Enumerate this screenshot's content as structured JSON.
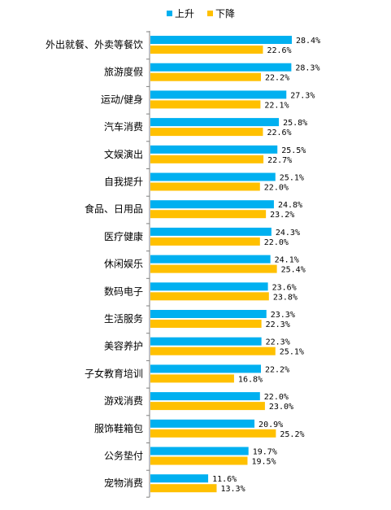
{
  "chart_data": {
    "type": "bar",
    "orientation": "horizontal",
    "categories": [
      "外出就餐、外卖等餐饮",
      "旅游度假",
      "运动/健身",
      "汽车消费",
      "文娱演出",
      "自我提升",
      "食品、日用品",
      "医疗健康",
      "休闲娱乐",
      "数码电子",
      "生活服务",
      "美容养护",
      "子女教育培训",
      "游戏消费",
      "服饰鞋箱包",
      "公务垫付",
      "宠物消费"
    ],
    "series": [
      {
        "name": "上升",
        "color": "#00B0F0",
        "values": [
          28.4,
          28.3,
          27.3,
          25.8,
          25.5,
          25.1,
          24.8,
          24.3,
          24.1,
          23.6,
          23.3,
          22.3,
          22.2,
          22.0,
          20.9,
          19.7,
          11.6
        ]
      },
      {
        "name": "下降",
        "color": "#FFC000",
        "values": [
          22.6,
          22.2,
          22.1,
          22.6,
          22.7,
          22.0,
          23.2,
          22.0,
          25.4,
          23.8,
          22.3,
          25.1,
          16.8,
          23.0,
          25.2,
          19.5,
          13.3
        ]
      }
    ],
    "value_suffix": "%",
    "xlim": [
      0,
      30
    ],
    "legend_position": "top",
    "grid": false
  }
}
